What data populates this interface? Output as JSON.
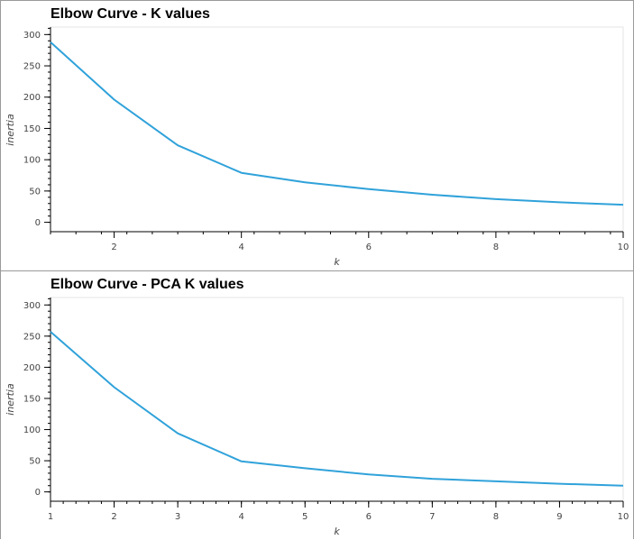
{
  "chart_data": [
    {
      "type": "line",
      "title": "Elbow Curve - K values",
      "xlabel": "k",
      "ylabel": "inertia",
      "xlim": [
        1,
        10
      ],
      "ylim": [
        -15,
        312
      ],
      "x_ticks": [
        2,
        4,
        6,
        8,
        10
      ],
      "y_ticks": [
        0,
        50,
        100,
        150,
        200,
        250,
        300
      ],
      "color": "#30a2da",
      "grid": false,
      "series": [
        {
          "x": [
            1,
            2,
            3,
            4,
            5,
            6,
            7,
            8,
            9,
            10
          ],
          "values": [
            288,
            196,
            123,
            79,
            64,
            53,
            44,
            37,
            32,
            28
          ]
        }
      ]
    },
    {
      "type": "line",
      "title": "Elbow Curve - PCA K values",
      "xlabel": "k",
      "ylabel": "inertia",
      "xlim": [
        1,
        10
      ],
      "ylim": [
        -15,
        312
      ],
      "x_ticks": [
        1,
        2,
        3,
        4,
        5,
        6,
        7,
        8,
        9,
        10
      ],
      "y_ticks": [
        0,
        50,
        100,
        150,
        200,
        250,
        300
      ],
      "color": "#30a2da",
      "grid": false,
      "series": [
        {
          "x": [
            1,
            2,
            3,
            4,
            5,
            6,
            7,
            8,
            9,
            10
          ],
          "values": [
            257,
            168,
            94,
            49,
            38,
            28,
            21,
            17,
            13,
            10
          ]
        }
      ]
    }
  ]
}
